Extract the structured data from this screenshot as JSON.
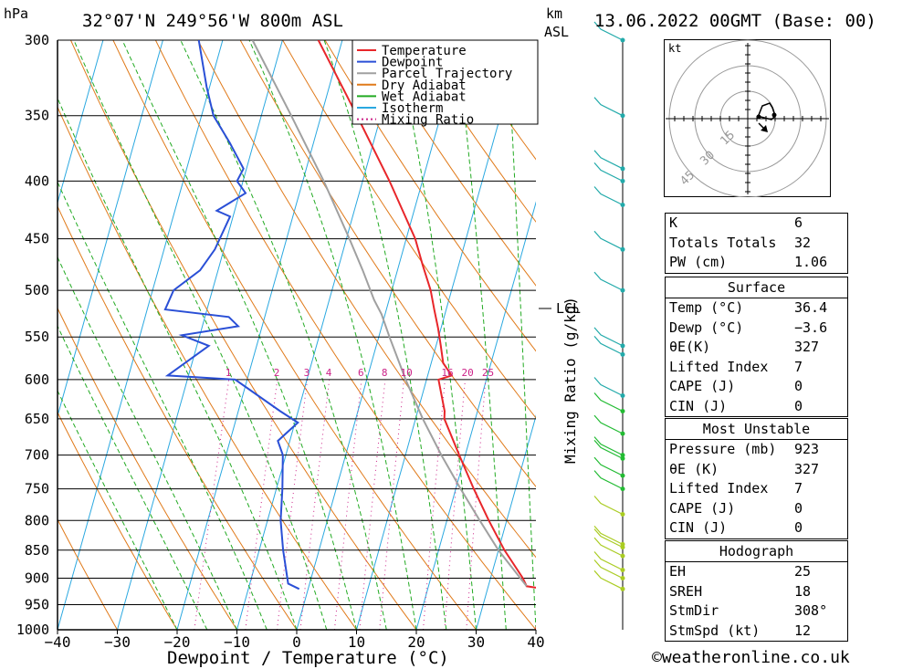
{
  "header": {
    "unit_left": "hPa",
    "location": "32°07'N  249°56'W  800m  ASL",
    "unit_km": "km",
    "unit_asl": "ASL",
    "datetime": "13.06.2022  00GMT  (Base: 00)"
  },
  "chart_data": {
    "type": "line",
    "xlabel": "Dewpoint / Temperature (°C)",
    "ylabel_left": "hPa",
    "ylabel_right": "Mixing Ratio (g/kg)",
    "pressure_levels": [
      300,
      350,
      400,
      450,
      500,
      550,
      600,
      650,
      700,
      750,
      800,
      850,
      900,
      950,
      1000
    ],
    "pressure_tick_labels": [
      "300",
      "350",
      "400",
      "450",
      "500",
      "550",
      "600",
      "650",
      "700",
      "750",
      "800",
      "850",
      "900",
      "950",
      "1000"
    ],
    "x_ticks": [
      -40,
      -30,
      -20,
      -10,
      0,
      10,
      20,
      30,
      40
    ],
    "x_tick_labels": [
      "−40",
      "−30",
      "−20",
      "−10",
      "0",
      "10",
      "20",
      "30",
      "40"
    ],
    "xlim": [
      -40,
      40
    ],
    "ylim": [
      1000,
      300
    ],
    "y_scale": "log",
    "legend": {
      "placement": "top-center",
      "items": [
        {
          "label": "Temperature",
          "color": "#e8262a",
          "style": "solid"
        },
        {
          "label": "Dewpoint",
          "color": "#2a4fd6",
          "style": "solid"
        },
        {
          "label": "Parcel Trajectory",
          "color": "#a0a0a0",
          "style": "solid"
        },
        {
          "label": "Dry Adiabat",
          "color": "#e07a1a",
          "style": "solid"
        },
        {
          "label": "Wet Adiabat",
          "color": "#22aa22",
          "style": "solid"
        },
        {
          "label": "Isotherm",
          "color": "#2aa8e0",
          "style": "solid"
        },
        {
          "label": "Mixing Ratio",
          "color": "#cc2288",
          "style": "dotted"
        }
      ]
    },
    "mixing_ratio_labels": [
      "1",
      "2",
      "3",
      "4",
      "6",
      "8",
      "10",
      "16",
      "20",
      "25"
    ],
    "mixing_ratio_values": [
      1,
      2,
      3,
      4,
      6,
      8,
      10,
      16,
      20,
      25
    ],
    "lcl_label": "LCL",
    "lcl_pressure": 525,
    "series": [
      {
        "name": "Temperature",
        "points": [
          [
            1000,
            40
          ],
          [
            920,
            39.5
          ],
          [
            915,
            36.4
          ],
          [
            900,
            35.4
          ],
          [
            850,
            31
          ],
          [
            800,
            27
          ],
          [
            750,
            23
          ],
          [
            700,
            19
          ],
          [
            650,
            14.8
          ],
          [
            640,
            14.5
          ],
          [
            600,
            12
          ],
          [
            595,
            14
          ],
          [
            580,
            12
          ],
          [
            560,
            10.8
          ],
          [
            540,
            9.5
          ],
          [
            520,
            8
          ],
          [
            500,
            6.5
          ],
          [
            475,
            4
          ],
          [
            450,
            1.5
          ],
          [
            400,
            -5.5
          ],
          [
            350,
            -14
          ],
          [
            300,
            -24
          ]
        ]
      },
      {
        "name": "Dewpoint",
        "points": [
          [
            920,
            -1.5
          ],
          [
            910,
            -3.6
          ],
          [
            850,
            -6
          ],
          [
            800,
            -7.8
          ],
          [
            750,
            -9
          ],
          [
            700,
            -10.5
          ],
          [
            680,
            -12
          ],
          [
            655,
            -9.5
          ],
          [
            640,
            -13
          ],
          [
            600,
            -22
          ],
          [
            595,
            -33.5
          ],
          [
            560,
            -28
          ],
          [
            548,
            -33
          ],
          [
            538,
            -24
          ],
          [
            528,
            -26
          ],
          [
            520,
            -37
          ],
          [
            500,
            -36.5
          ],
          [
            480,
            -33
          ],
          [
            460,
            -31.5
          ],
          [
            430,
            -30.5
          ],
          [
            425,
            -33
          ],
          [
            410,
            -29
          ],
          [
            400,
            -31
          ],
          [
            390,
            -30.5
          ],
          [
            370,
            -34
          ],
          [
            350,
            -38
          ],
          [
            330,
            -40.5
          ],
          [
            300,
            -44
          ]
        ]
      },
      {
        "name": "Parcel Trajectory",
        "points": [
          [
            915,
            36.4
          ],
          [
            850,
            30
          ],
          [
            800,
            25.5
          ],
          [
            750,
            20.8
          ],
          [
            700,
            16
          ],
          [
            650,
            11.2
          ],
          [
            600,
            6.5
          ],
          [
            550,
            1.8
          ],
          [
            525,
            -0.6
          ],
          [
            510,
            -2.5
          ],
          [
            480,
            -5.8
          ],
          [
            450,
            -9.5
          ],
          [
            400,
            -16.5
          ],
          [
            350,
            -25
          ],
          [
            300,
            -35
          ]
        ]
      }
    ]
  },
  "wind_axis_km_label": "LCL",
  "hodograph": {
    "unit": "kt",
    "ring_labels": [
      "15",
      "30",
      "45"
    ]
  },
  "indices": {
    "general": [
      {
        "label": "K",
        "value": "6"
      },
      {
        "label": "Totals Totals",
        "value": "32"
      },
      {
        "label": "PW (cm)",
        "value": "1.06"
      }
    ],
    "surface": {
      "title": "Surface",
      "rows": [
        {
          "label": "Temp (°C)",
          "value": "36.4"
        },
        {
          "label": "Dewp (°C)",
          "value": "−3.6"
        },
        {
          "label": "θE(K)",
          "value": "327"
        },
        {
          "label": "Lifted Index",
          "value": "7"
        },
        {
          "label": "CAPE (J)",
          "value": "0"
        },
        {
          "label": "CIN (J)",
          "value": "0"
        }
      ]
    },
    "most_unstable": {
      "title": "Most Unstable",
      "rows": [
        {
          "label": "Pressure (mb)",
          "value": "923"
        },
        {
          "label": "θE (K)",
          "value": "327"
        },
        {
          "label": "Lifted Index",
          "value": "7"
        },
        {
          "label": "CAPE (J)",
          "value": "0"
        },
        {
          "label": "CIN (J)",
          "value": "0"
        }
      ]
    },
    "hodograph": {
      "title": "Hodograph",
      "rows": [
        {
          "label": "EH",
          "value": "25"
        },
        {
          "label": "SREH",
          "value": "18"
        },
        {
          "label": "StmDir",
          "value": "308°"
        },
        {
          "label": "StmSpd (kt)",
          "value": "12"
        }
      ]
    }
  },
  "credit": "©weatheronline.co.uk"
}
